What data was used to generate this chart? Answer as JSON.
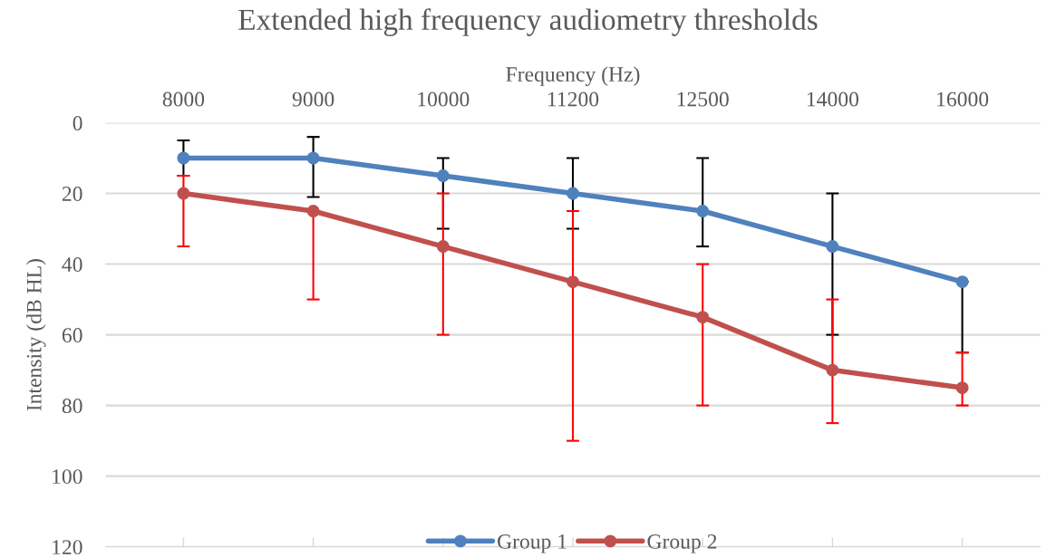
{
  "chart_data": {
    "type": "line",
    "title": "Extended high frequency audiometry thresholds",
    "xlabel": "Frequency (Hz)",
    "ylabel": "Intensity (dB HL)",
    "categories": [
      "8000",
      "9000",
      "10000",
      "11200",
      "12500",
      "14000",
      "16000"
    ],
    "series": [
      {
        "name": "Group 1",
        "color": "#4f81bd",
        "values": [
          10,
          10,
          15,
          20,
          25,
          35,
          45
        ],
        "errors": [
          [
            5,
            15
          ],
          [
            4,
            21
          ],
          [
            10,
            30
          ],
          [
            10,
            30
          ],
          [
            10,
            35
          ],
          [
            20,
            60
          ],
          [
            45,
            65
          ]
        ]
      },
      {
        "name": "Group 2",
        "color": "#c0504d",
        "values": [
          20,
          25,
          35,
          45,
          55,
          70,
          75
        ],
        "errors": [
          [
            15,
            35
          ],
          [
            25,
            50
          ],
          [
            20,
            60
          ],
          [
            25,
            90
          ],
          [
            40,
            80
          ],
          [
            50,
            85
          ],
          [
            65,
            80
          ]
        ]
      }
    ],
    "ylim": [
      120,
      0
    ],
    "yticks": [
      0,
      20,
      40,
      60,
      80,
      100,
      120
    ],
    "grid": "y",
    "legend": "bottom",
    "marker": "circle",
    "line_style": "solid"
  }
}
